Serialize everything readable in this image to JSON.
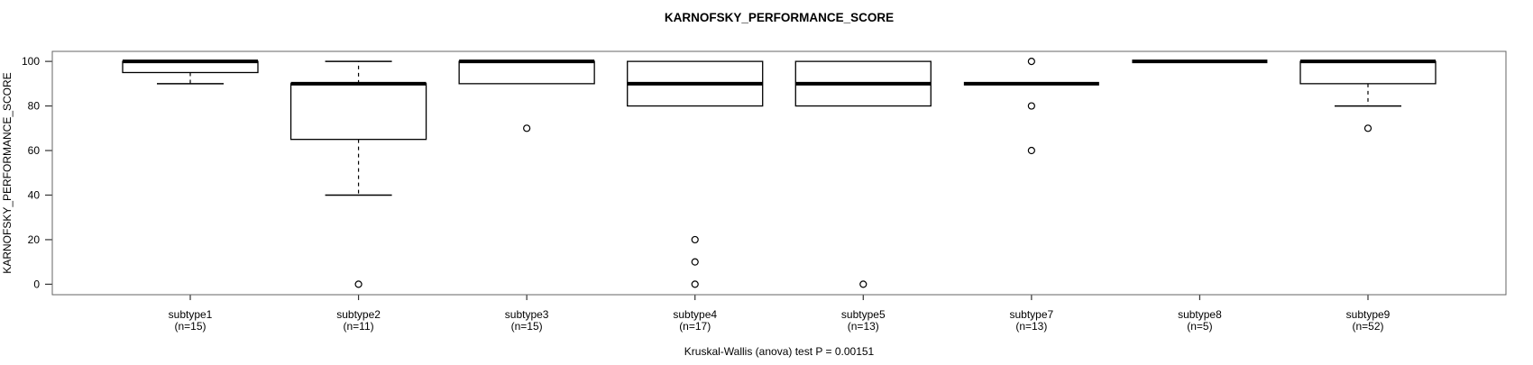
{
  "chart_data": {
    "type": "boxplot",
    "title": "KARNOFSKY_PERFORMANCE_SCORE",
    "ylabel": "KARNOFSKY_PERFORMANCE_SCORE",
    "caption": "Kruskal-Wallis (anova) test P = 0.00151",
    "y_ticks": [
      0,
      20,
      40,
      60,
      80,
      100
    ],
    "ylim": [
      -4.7,
      104.5
    ],
    "grid": false,
    "colors": {
      "box_stroke": "#000000",
      "box_fill": "#ffffff",
      "frame": "#666666",
      "tick": "#333333"
    },
    "categories": [
      "subtype1",
      "subtype2",
      "subtype3",
      "subtype4",
      "subtype5",
      "subtype7",
      "subtype8",
      "subtype9"
    ],
    "groups": [
      {
        "label": "subtype1",
        "n_label": "(n=15)",
        "n": 15,
        "low": 90,
        "q1": 95,
        "median": 100,
        "q3": 100,
        "high": 100,
        "outliers": []
      },
      {
        "label": "subtype2",
        "n_label": "(n=11)",
        "n": 11,
        "low": 40,
        "q1": 65,
        "median": 90,
        "q3": 90,
        "high": 100,
        "outliers": [
          0
        ]
      },
      {
        "label": "subtype3",
        "n_label": "(n=15)",
        "n": 15,
        "low": 90,
        "q1": 90,
        "median": 100,
        "q3": 100,
        "high": 100,
        "outliers": [
          70
        ]
      },
      {
        "label": "subtype4",
        "n_label": "(n=17)",
        "n": 17,
        "low": 80,
        "q1": 80,
        "median": 90,
        "q3": 100,
        "high": 100,
        "outliers": [
          20,
          10,
          0
        ]
      },
      {
        "label": "subtype5",
        "n_label": "(n=13)",
        "n": 13,
        "low": 80,
        "q1": 80,
        "median": 90,
        "q3": 100,
        "high": 100,
        "outliers": [
          0
        ]
      },
      {
        "label": "subtype7",
        "n_label": "(n=13)",
        "n": 13,
        "low": 90,
        "q1": 90,
        "median": 90,
        "q3": 90,
        "high": 90,
        "outliers": [
          100,
          80,
          60
        ]
      },
      {
        "label": "subtype8",
        "n_label": "(n=5)",
        "n": 5,
        "low": 100,
        "q1": 100,
        "median": 100,
        "q3": 100,
        "high": 100,
        "outliers": []
      },
      {
        "label": "subtype9",
        "n_label": "(n=52)",
        "n": 52,
        "low": 80,
        "q1": 90,
        "median": 100,
        "q3": 100,
        "high": 100,
        "outliers": [
          70
        ]
      }
    ]
  }
}
